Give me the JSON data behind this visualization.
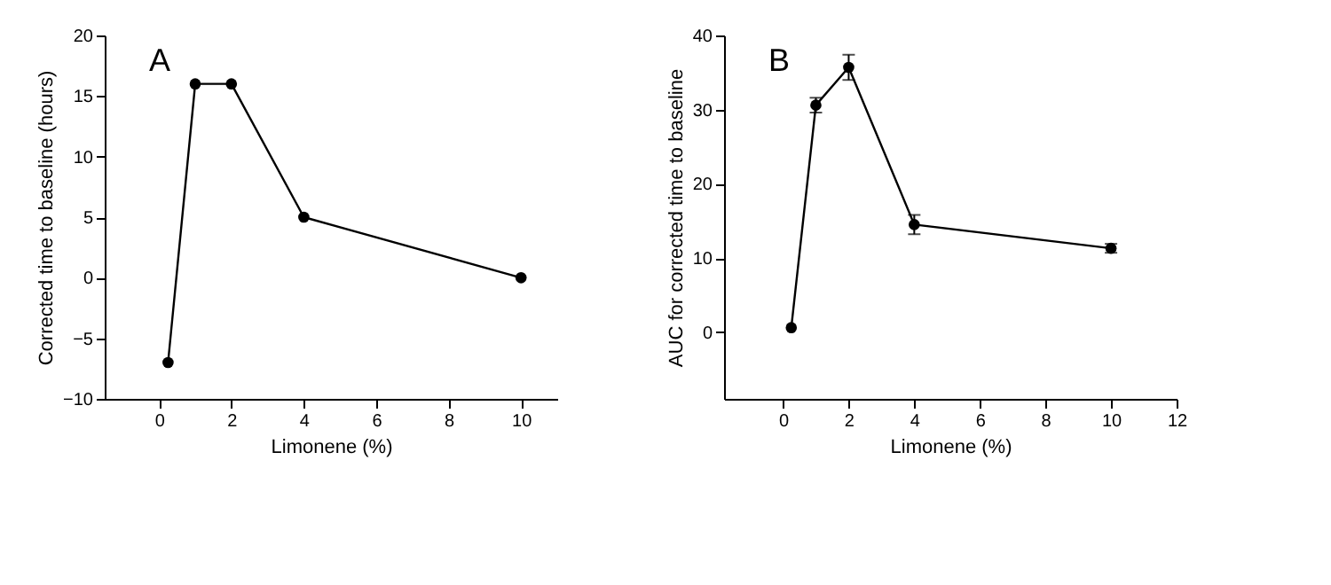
{
  "chart_data": [
    {
      "type": "line",
      "xlabel": "Limonene (%)",
      "ylabel": "Corrected time to baseline (hours)",
      "annotations": [
        "A"
      ],
      "x": [
        0.25,
        1,
        2,
        4,
        10
      ],
      "xlim": [
        -1.5,
        11
      ],
      "xticks": [
        0,
        2,
        4,
        6,
        8,
        10
      ],
      "ylim": [
        -10,
        20
      ],
      "yticks": [
        -10,
        -5,
        0,
        5,
        10,
        15,
        20
      ],
      "marker": "circle",
      "grid": false,
      "series": [
        {
          "color": "#000000",
          "values": [
            -7,
            16,
            16,
            5,
            0
          ]
        }
      ]
    },
    {
      "type": "line",
      "xlabel": "Limonene (%)",
      "ylabel": "AUC for corrected time to baseline",
      "annotations": [
        "B"
      ],
      "x": [
        0.25,
        1,
        2,
        4,
        10
      ],
      "xlim": [
        -1.8,
        12
      ],
      "xticks": [
        0,
        2,
        4,
        6,
        8,
        10,
        12
      ],
      "ylim": [
        -9,
        40
      ],
      "yticks": [
        0,
        10,
        20,
        30,
        40
      ],
      "marker": "circle",
      "grid": false,
      "series": [
        {
          "color": "#000000",
          "values": [
            0.6,
            30.6,
            35.7,
            14.5,
            11.3
          ],
          "errors": [
            null,
            1,
            1.7,
            1.3,
            0.6
          ]
        }
      ]
    }
  ]
}
